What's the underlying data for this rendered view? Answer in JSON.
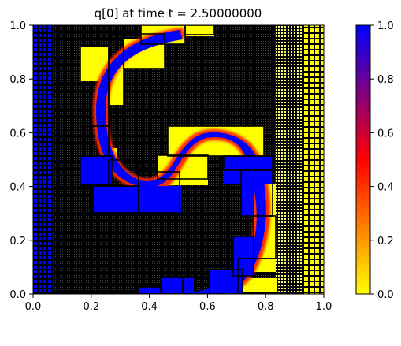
{
  "chart_data": {
    "type": "heatmap",
    "title": "q[0] at time t =     2.50000000",
    "xlabel": "",
    "ylabel": "",
    "xlim": [
      0.0,
      1.0
    ],
    "ylim": [
      0.0,
      1.0
    ],
    "x_ticks": [
      "0.0",
      "0.2",
      "0.4",
      "0.6",
      "0.8",
      "1.0"
    ],
    "y_ticks": [
      "0.0",
      "0.2",
      "0.4",
      "0.6",
      "0.8",
      "1.0"
    ],
    "grid": false,
    "colormap": {
      "name": "yellow-red-blue",
      "stops": [
        {
          "value": 0.0,
          "color": "#ffff00"
        },
        {
          "value": 0.5,
          "color": "#ff0000"
        },
        {
          "value": 1.0,
          "color": "#0000ff"
        }
      ]
    },
    "colorbar": {
      "range": [
        0.0,
        1.0
      ],
      "ticks": [
        "0.0",
        "0.2",
        "0.4",
        "0.6",
        "0.8",
        "1.0"
      ],
      "placement": "right"
    },
    "field": {
      "description_source": "spiral band of q=1 on q=0 background",
      "background_value": 0.0,
      "left_strip": {
        "x": [
          0.0,
          0.067
        ],
        "value": 1.0
      },
      "right_strip": {
        "x": [
          0.933,
          1.0
        ],
        "value": 0.0
      }
    },
    "amr_patches": [
      {
        "x": [
          0.17,
          0.28
        ],
        "y": [
          0.65,
          0.86
        ]
      },
      {
        "x": [
          0.27,
          0.32
        ],
        "y": [
          0.65,
          0.97
        ]
      },
      {
        "x": [
          0.32,
          0.52
        ],
        "y": [
          0.77,
          0.97
        ]
      },
      {
        "x": [
          0.38,
          0.47
        ],
        "y": [
          0.86,
          1.0
        ]
      },
      {
        "x": [
          0.47,
          0.6
        ],
        "y": [
          0.96,
          1.0
        ]
      },
      {
        "x": [
          0.16,
          0.33
        ],
        "y": [
          0.4,
          0.5
        ]
      },
      {
        "x": [
          0.16,
          0.28
        ],
        "y": [
          0.52,
          0.65
        ]
      },
      {
        "x": [
          0.27,
          0.37
        ],
        "y": [
          0.5,
          0.6
        ]
      },
      {
        "x": [
          0.36,
          0.51
        ],
        "y": [
          0.4,
          0.48
        ]
      },
      {
        "x": [
          0.43,
          0.6
        ],
        "y": [
          0.48,
          0.55
        ]
      },
      {
        "x": [
          0.47,
          0.81
        ],
        "y": [
          0.55,
          0.65
        ]
      },
      {
        "x": [
          0.6,
          0.84
        ],
        "y": [
          0.44,
          0.55
        ]
      },
      {
        "x": [
          0.67,
          0.84
        ],
        "y": [
          0.1,
          0.44
        ]
      },
      {
        "x": [
          0.52,
          0.74
        ],
        "y": [
          0.08,
          0.22
        ]
      },
      {
        "x": [
          0.38,
          0.59
        ],
        "y": [
          0.0,
          0.08
        ]
      },
      {
        "x": [
          0.28,
          0.6
        ],
        "y": [
          0.0,
          0.07
        ]
      }
    ]
  }
}
